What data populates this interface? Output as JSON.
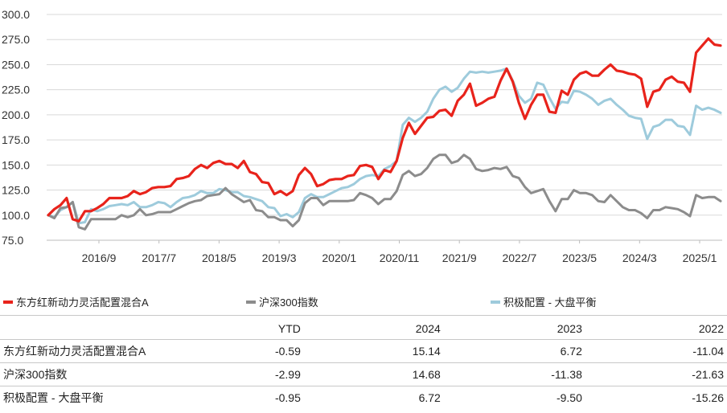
{
  "chart_data": {
    "type": "line",
    "ylim": [
      75,
      300
    ],
    "yticks": [
      "75.0",
      "100.0",
      "125.0",
      "150.0",
      "175.0",
      "200.0",
      "225.0",
      "250.0",
      "275.0",
      "300.0"
    ],
    "xticks": [
      "2016/9",
      "2017/7",
      "2018/5",
      "2019/3",
      "2020/1",
      "2020/11",
      "2021/9",
      "2022/7",
      "2023/5",
      "2024/3",
      "2025/1"
    ],
    "grid": "horizontal",
    "series": [
      {
        "name": "东方红新动力灵活配置混合A",
        "color": "#e8231b",
        "values": [
          100,
          106,
          110,
          117,
          96,
          94,
          104,
          104,
          107,
          111,
          117,
          117,
          117,
          119,
          124,
          121,
          123,
          127,
          128,
          128,
          129,
          136,
          137,
          139,
          146,
          150,
          147,
          152,
          154,
          151,
          151,
          147,
          154,
          143,
          141,
          133,
          132,
          121,
          124,
          120,
          124,
          140,
          147,
          141,
          129,
          131,
          135,
          136,
          136,
          139,
          140,
          149,
          150,
          148,
          136,
          145,
          143,
          154,
          177,
          192,
          181,
          189,
          197,
          198,
          204,
          205,
          199,
          214,
          220,
          231,
          209,
          212,
          216,
          218,
          234,
          246,
          233,
          212,
          196,
          210,
          220,
          220,
          203,
          202,
          224,
          220,
          235,
          241,
          243,
          239,
          239,
          245,
          250,
          244,
          243,
          241,
          240,
          236,
          208,
          223,
          225,
          235,
          238,
          233,
          232,
          223,
          262,
          269,
          276,
          270,
          269
        ]
      },
      {
        "name": "沪深300指数",
        "color": "#8c8c8c",
        "values": [
          100,
          97,
          107,
          108,
          113,
          88,
          86,
          96,
          96,
          96,
          96,
          96,
          100,
          98,
          100,
          106,
          100,
          101,
          103,
          103,
          103,
          106,
          109,
          112,
          114,
          115,
          119,
          120,
          121,
          127,
          121,
          117,
          113,
          115,
          105,
          104,
          98,
          98,
          95,
          95,
          89,
          95,
          112,
          117,
          117,
          110,
          114,
          114,
          114,
          114,
          115,
          122,
          120,
          117,
          111,
          116,
          116,
          124,
          140,
          144,
          139,
          141,
          147,
          156,
          160,
          160,
          152,
          154,
          160,
          156,
          146,
          144,
          145,
          147,
          146,
          148,
          139,
          137,
          128,
          122,
          124,
          126,
          114,
          104,
          116,
          116,
          125,
          122,
          122,
          120,
          114,
          113,
          120,
          114,
          108,
          105,
          105,
          102,
          97,
          105,
          105,
          108,
          107,
          106,
          103,
          99,
          120,
          117,
          118,
          118,
          114
        ]
      },
      {
        "name": "积极配置 - 大盘平衡",
        "color": "#9ecbdc",
        "values": [
          100,
          98,
          105,
          108,
          113,
          92,
          93,
          106,
          104,
          106,
          109,
          110,
          111,
          110,
          113,
          108,
          108,
          110,
          113,
          112,
          108,
          113,
          117,
          118,
          120,
          124,
          122,
          122,
          126,
          125,
          123,
          123,
          119,
          118,
          116,
          114,
          108,
          107,
          99,
          101,
          98,
          103,
          117,
          121,
          118,
          118,
          121,
          124,
          127,
          128,
          131,
          136,
          139,
          140,
          139,
          146,
          149,
          154,
          190,
          197,
          193,
          197,
          203,
          216,
          225,
          228,
          223,
          227,
          236,
          243,
          242,
          243,
          242,
          243,
          244,
          246,
          234,
          219,
          212,
          216,
          232,
          230,
          217,
          206,
          213,
          212,
          224,
          223,
          220,
          216,
          210,
          214,
          216,
          210,
          205,
          199,
          197,
          196,
          176,
          188,
          190,
          195,
          195,
          189,
          188,
          180,
          209,
          205,
          207,
          205,
          202
        ]
      }
    ]
  },
  "table": {
    "headers": [
      "",
      "YTD",
      "2024",
      "2023",
      "2022"
    ],
    "rows": [
      {
        "name": "东方红新动力灵活配置混合A",
        "values": [
          "-0.59",
          "15.14",
          "6.72",
          "-11.04"
        ]
      },
      {
        "name": "沪深300指数",
        "values": [
          "-2.99",
          "14.68",
          "-11.38",
          "-21.63"
        ]
      },
      {
        "name": "积极配置 - 大盘平衡",
        "values": [
          "-0.95",
          "6.72",
          "-9.50",
          "-15.26"
        ]
      }
    ]
  }
}
